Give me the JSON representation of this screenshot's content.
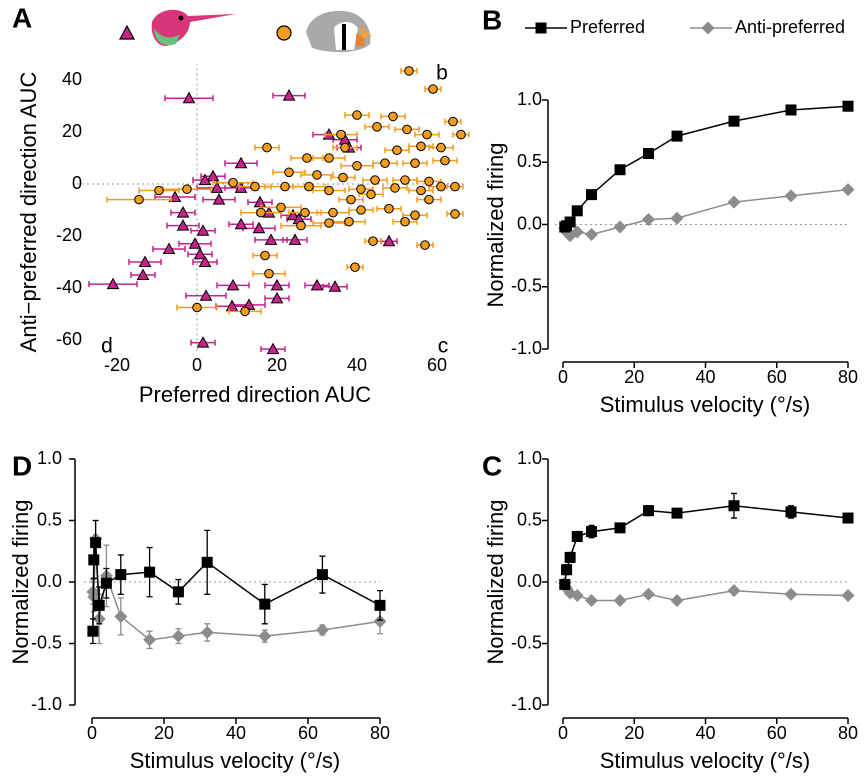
{
  "chart_data": [
    {
      "type": "scatter",
      "panel": "A",
      "xlabel": "Preferred direction AUC",
      "ylabel": "Anti−preferred direction AUC",
      "annotations": [
        "b",
        "c",
        "d"
      ],
      "xlim": [
        -28,
        67
      ],
      "ylim": [
        -64,
        46
      ],
      "xticks": [
        -20,
        0,
        20,
        40,
        60
      ],
      "yticks": [
        40,
        20,
        0,
        -20,
        -40,
        -60
      ],
      "series": [
        {
          "marker": "triangle",
          "color": "#c4248c",
          "x": [
            -2,
            23,
            33,
            37,
            38,
            11,
            4,
            5,
            2,
            11,
            -5.5,
            -3.5,
            5.5,
            18,
            24,
            1.5,
            -3.5,
            25.5,
            15.5,
            18.5,
            24.5,
            0.75,
            2,
            -0.5,
            -7,
            11,
            15.75,
            48,
            -13,
            -21,
            -13.5,
            2.25,
            9,
            8.75,
            13,
            20,
            20,
            30,
            34.5,
            1.5,
            19
          ],
          "values": [
            33,
            34,
            19,
            17,
            14,
            8,
            3,
            -1.5,
            1.5,
            -1.5,
            -5,
            -11,
            -6,
            -11,
            -12,
            -18,
            -16,
            -13.5,
            -17,
            -21.5,
            -21.5,
            -27,
            -30,
            -23,
            -25,
            -15.5,
            -7,
            -22,
            -30,
            -38.5,
            -35,
            -43,
            -39,
            -47,
            -46.5,
            -44,
            -39,
            -39,
            -39.5,
            -61,
            -63.5
          ],
          "xerr": [
            6,
            4,
            4,
            3,
            3,
            4,
            3,
            5,
            3,
            4,
            5,
            3,
            4,
            3,
            3,
            3,
            4,
            3,
            4,
            4,
            3,
            3,
            3,
            4,
            4,
            3,
            3,
            2,
            4,
            6,
            3,
            5,
            4,
            4,
            4,
            3,
            3,
            3,
            3,
            3,
            3
          ]
        },
        {
          "marker": "circle",
          "color": "#f39c1e",
          "x": [
            53,
            59,
            40,
            49,
            45,
            64,
            52.5,
            57.5,
            66,
            36,
            37,
            17.5,
            27.5,
            33,
            50,
            56,
            61,
            40,
            47,
            54.5,
            62,
            23,
            30,
            36.5,
            44.5,
            52,
            58,
            64.5,
            9,
            14.5,
            22,
            28,
            33,
            41,
            49.5,
            56,
            61,
            -9.5,
            -2.5,
            -14.5,
            16,
            21,
            27,
            34,
            41,
            48,
            54.5,
            64.5,
            26,
            33,
            38,
            52,
            44,
            57,
            39.5,
            12,
            0,
            17,
            18,
            43.5,
            38.5,
            58
          ],
          "values": [
            43.5,
            36.5,
            26.5,
            26,
            22,
            24,
            21,
            19,
            19,
            19,
            14,
            14,
            10,
            10,
            13,
            14.5,
            14,
            7,
            8,
            8,
            9,
            4.5,
            3.5,
            2.5,
            1.5,
            1.5,
            1,
            -1,
            0.5,
            -1,
            -1,
            -1,
            -2.5,
            -2,
            -1.5,
            -2.5,
            -1,
            -2.5,
            -2,
            -6,
            -11,
            -9,
            -11,
            -11,
            -10,
            -9.5,
            -12,
            -11.5,
            -16,
            -15,
            -14.5,
            -14.5,
            -22,
            -23.5,
            -32,
            -49,
            -47.5,
            -27.5,
            -34.5,
            -4,
            -6,
            -6
          ],
          "xerr": [
            2,
            2,
            3,
            3,
            3,
            2,
            3,
            3,
            2,
            4,
            3,
            3,
            4,
            4,
            3,
            3,
            3,
            4,
            3,
            3,
            3,
            4,
            4,
            3,
            3,
            3,
            3,
            2,
            5,
            4,
            5,
            4,
            4,
            3,
            3,
            3,
            3,
            5,
            6,
            8,
            5,
            5,
            4,
            4,
            3,
            3,
            3,
            2,
            5,
            4,
            4,
            3,
            2,
            2,
            2,
            4,
            5,
            3,
            4,
            3,
            3,
            3
          ]
        }
      ]
    },
    {
      "type": "line",
      "panel": "B",
      "xlabel": "Stimulus velocity (°/s)",
      "ylabel": "Normalized firing",
      "legend": "top",
      "xlim": [
        0,
        80
      ],
      "ylim": [
        -1,
        1
      ],
      "xticks": [
        0,
        20,
        40,
        60,
        80
      ],
      "yticks": [
        {
          "value": 1,
          "label": "1.0"
        },
        0.5,
        {
          "value": 0,
          "label": "0.0"
        },
        -0.5,
        {
          "value": -1,
          "label": "-1.0"
        }
      ],
      "x": [
        0.5,
        1,
        2,
        4,
        8,
        16,
        24,
        32,
        48,
        64,
        80
      ],
      "series": [
        {
          "name": "Preferred",
          "marker": "square",
          "color": "#000000",
          "values": [
            -0.02,
            -0.01,
            0.02,
            0.11,
            0.24,
            0.44,
            0.57,
            0.71,
            0.83,
            0.92,
            0.95
          ]
        },
        {
          "name": "Anti-preferred",
          "marker": "diamond",
          "color": "#8c8c8c",
          "values": [
            -0.03,
            -0.06,
            -0.09,
            -0.06,
            -0.08,
            -0.02,
            0.04,
            0.05,
            0.18,
            0.23,
            0.28
          ]
        }
      ]
    },
    {
      "type": "line",
      "panel": "C",
      "xlabel": "Stimulus velocity (°/s)",
      "ylabel": "Normalized firing",
      "xlim": [
        0,
        80
      ],
      "ylim": [
        -1,
        1
      ],
      "xticks": [
        0,
        20,
        40,
        60,
        80
      ],
      "yticks": [
        {
          "value": 1,
          "label": "1.0"
        },
        0.5,
        {
          "value": 0,
          "label": "0.0"
        },
        -0.5,
        {
          "value": -1,
          "label": "-1.0"
        }
      ],
      "x": [
        0.5,
        1,
        2,
        4,
        8,
        16,
        24,
        32,
        48,
        64,
        80
      ],
      "series": [
        {
          "marker": "square",
          "color": "#000000",
          "values": [
            -0.02,
            0.1,
            0.2,
            0.37,
            0.41,
            0.44,
            0.58,
            0.56,
            0.62,
            0.57,
            0.52
          ],
          "errors": [
            0.03,
            0.04,
            0.04,
            0.04,
            0.05,
            0.03,
            0.04,
            0.03,
            0.1,
            0.05,
            0.03
          ]
        },
        {
          "marker": "diamond",
          "color": "#8c8c8c",
          "values": [
            -0.01,
            -0.05,
            -0.09,
            -0.11,
            -0.15,
            -0.15,
            -0.1,
            -0.15,
            -0.07,
            -0.1,
            -0.11
          ],
          "errors": [
            0.02,
            0.02,
            0.02,
            0.02,
            0.02,
            0.02,
            0.02,
            0.02,
            0.02,
            0.02,
            0.02
          ]
        }
      ]
    },
    {
      "type": "line",
      "panel": "D",
      "xlabel": "Stimulus velocity (°/s)",
      "ylabel": "Normalized firing",
      "xlim": [
        0,
        80
      ],
      "ylim": [
        -1,
        1
      ],
      "xticks": [
        0,
        20,
        40,
        60,
        80
      ],
      "yticks": [
        {
          "value": 1,
          "label": "1.0"
        },
        0.5,
        {
          "value": 0,
          "label": "0.0"
        },
        -0.5,
        {
          "value": -1,
          "label": "-1.0"
        }
      ],
      "x": [
        0.25,
        0.5,
        1,
        2,
        4,
        8,
        16,
        24,
        32,
        48,
        64,
        80
      ],
      "series": [
        {
          "marker": "square",
          "color": "#000000",
          "values": [
            -0.4,
            0.18,
            0.32,
            -0.19,
            -0.01,
            0.06,
            0.08,
            -0.08,
            0.16,
            -0.18,
            0.06,
            -0.19
          ],
          "errors": [
            0.1,
            0.15,
            0.18,
            0.15,
            0.12,
            0.16,
            0.2,
            0.1,
            0.26,
            0.16,
            0.15,
            0.12
          ]
        },
        {
          "marker": "diamond",
          "color": "#8c8c8c",
          "values": [
            -0.08,
            -0.12,
            0.35,
            -0.3,
            0.05,
            -0.28,
            -0.47,
            -0.44,
            -0.41,
            -0.44,
            -0.39,
            -0.32
          ],
          "errors": [
            0.1,
            0.12,
            0.15,
            0.2,
            0.25,
            0.15,
            0.07,
            0.06,
            0.07,
            0.05,
            0.04,
            0.1
          ]
        }
      ]
    }
  ]
}
